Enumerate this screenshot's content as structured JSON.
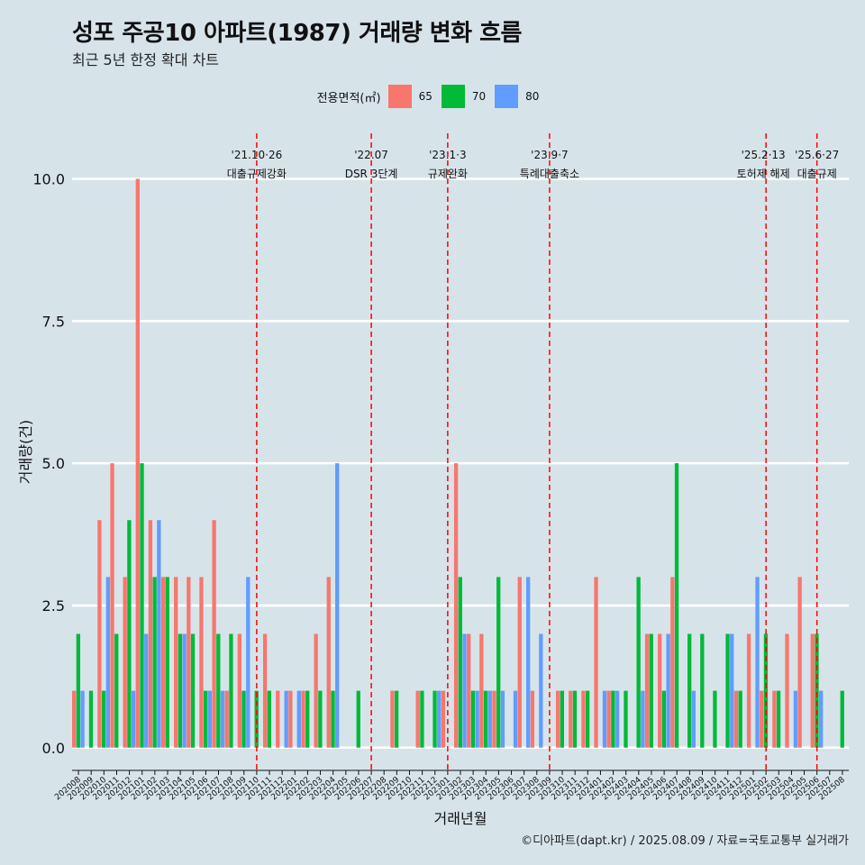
{
  "title": "성포 주공10 아파트(1987) 거래량 변화 흐름",
  "subtitle": "최근 5년 한정 확대 차트",
  "caption": "©디아파트(dapt.kr) / 2025.08.09 / 자료=국토교통부 실거래가",
  "legend": {
    "title": "전용면적(㎡)",
    "items": [
      {
        "label": "65",
        "color": "#f8766d"
      },
      {
        "label": "70",
        "color": "#00ba38"
      },
      {
        "label": "80",
        "color": "#619cff"
      }
    ]
  },
  "chart_data": {
    "type": "bar",
    "xlabel": "거래년월",
    "ylabel": "거래량(건)",
    "ylim": [
      -0.4,
      10.8
    ],
    "yticks": [
      "0.0",
      "2.5",
      "5.0",
      "7.5",
      "10.0"
    ],
    "grid": true,
    "legend_position": "top",
    "months": [
      "202008",
      "202009",
      "202010",
      "202011",
      "202012",
      "202101",
      "202102",
      "202103",
      "202104",
      "202105",
      "202106",
      "202107",
      "202108",
      "202109",
      "202110",
      "202111",
      "202112",
      "202201",
      "202202",
      "202203",
      "202204",
      "202205",
      "202206",
      "202207",
      "202208",
      "202209",
      "202210",
      "202211",
      "202212",
      "202301",
      "202302",
      "202303",
      "202304",
      "202305",
      "202306",
      "202307",
      "202308",
      "202309",
      "202310",
      "202311",
      "202312",
      "202401",
      "202402",
      "202403",
      "202404",
      "202405",
      "202406",
      "202407",
      "202408",
      "202409",
      "202410",
      "202411",
      "202412",
      "202501",
      "202502",
      "202503",
      "202504",
      "202505",
      "202506",
      "202507",
      "202508"
    ],
    "series": [
      {
        "name": "65",
        "color": "#f8766d",
        "values": [
          1,
          0,
          4,
          5,
          3,
          10,
          4,
          3,
          3,
          3,
          3,
          4,
          1,
          2,
          0,
          2,
          1,
          1,
          1,
          2,
          3,
          0,
          0,
          0,
          0,
          1,
          0,
          1,
          0,
          1,
          5,
          2,
          2,
          1,
          0,
          3,
          1,
          0,
          1,
          1,
          1,
          3,
          1,
          0,
          0,
          2,
          2,
          3,
          0,
          0,
          0,
          0,
          1,
          2,
          1,
          1,
          2,
          3,
          2,
          0,
          0
        ]
      },
      {
        "name": "70",
        "color": "#00ba38",
        "values": [
          2,
          1,
          1,
          2,
          4,
          5,
          3,
          3,
          2,
          2,
          1,
          2,
          2,
          1,
          1,
          1,
          0,
          0,
          1,
          1,
          1,
          0,
          1,
          0,
          0,
          1,
          0,
          1,
          1,
          0,
          3,
          1,
          1,
          3,
          0,
          0,
          0,
          0,
          1,
          1,
          1,
          0,
          1,
          1,
          3,
          2,
          1,
          5,
          2,
          2,
          1,
          2,
          1,
          0,
          2,
          1,
          0,
          0,
          2,
          0,
          1
        ]
      },
      {
        "name": "80",
        "color": "#619cff",
        "values": [
          1,
          0,
          3,
          0,
          1,
          2,
          4,
          0,
          2,
          0,
          1,
          1,
          0,
          3,
          0,
          0,
          1,
          1,
          0,
          0,
          5,
          0,
          0,
          0,
          0,
          0,
          0,
          0,
          1,
          0,
          2,
          1,
          1,
          1,
          1,
          3,
          2,
          0,
          0,
          0,
          0,
          1,
          1,
          0,
          1,
          0,
          2,
          0,
          1,
          0,
          0,
          2,
          0,
          3,
          0,
          0,
          1,
          0,
          1,
          0,
          0
        ]
      }
    ],
    "events": [
      {
        "month": "202110",
        "date": "'21.10·26",
        "label": "대출규제강화"
      },
      {
        "month": "202207",
        "date": "'22.07",
        "label": "DSR 3단계"
      },
      {
        "month": "202301",
        "date": "'23.1·3",
        "label": "규제완화"
      },
      {
        "month": "202309",
        "date": "'23.9·7",
        "label": "특례대출축소"
      },
      {
        "month": "202502",
        "date": "'25.2·13",
        "label": "토허제 해제"
      },
      {
        "month": "202506",
        "date": "'25.6·27",
        "label": "대출규제"
      }
    ]
  }
}
